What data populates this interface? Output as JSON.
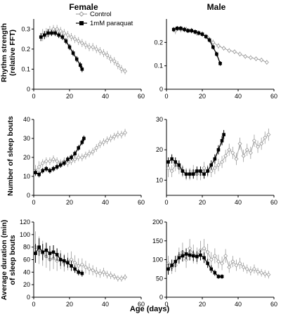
{
  "figure": {
    "column_titles": [
      "Female",
      "Male"
    ],
    "row_labels": [
      [
        "Rhythm strength",
        "(relative FFT)"
      ],
      [
        "Number of sleep bouts"
      ],
      [
        "Average duration (min)",
        "of sleep bouts"
      ]
    ],
    "x_axis_label": "Age (days)",
    "legend": [
      "Control",
      "1mM paraquat"
    ],
    "colors": {
      "control": "#9a9a9a",
      "paraquat": "#000000"
    }
  },
  "chart_data": [
    {
      "type": "line",
      "row": 0,
      "col": 0,
      "panel": "Female - rhythm strength",
      "xlim": [
        0,
        60
      ],
      "ylim": [
        0,
        0.35
      ],
      "xticks": [
        0,
        20,
        40,
        60
      ],
      "yticks": [
        0,
        0.1,
        0.2,
        0.3
      ],
      "x_ticklabels": [
        "0",
        "20",
        "40",
        "60"
      ],
      "y_ticklabels": [
        "0",
        "0.1",
        "0.2",
        "0.3"
      ],
      "series": [
        {
          "name": "Control",
          "marker": "open-diamond",
          "x": [
            5,
            7,
            9,
            11,
            13,
            15,
            17,
            19,
            21,
            23,
            25,
            27,
            29,
            31,
            33,
            35,
            37,
            39,
            41,
            43,
            45,
            47,
            49,
            51
          ],
          "y": [
            0.27,
            0.28,
            0.29,
            0.3,
            0.3,
            0.29,
            0.28,
            0.27,
            0.26,
            0.25,
            0.24,
            0.23,
            0.22,
            0.21,
            0.21,
            0.2,
            0.19,
            0.18,
            0.17,
            0.15,
            0.14,
            0.12,
            0.1,
            0.09
          ],
          "err": [
            0.03,
            0.025,
            0.025,
            0.02,
            0.02,
            0.02,
            0.02,
            0.02,
            0.02,
            0.02,
            0.02,
            0.02,
            0.02,
            0.02,
            0.02,
            0.02,
            0.02,
            0.02,
            0.02,
            0.02,
            0.02,
            0.02,
            0.02,
            0.015
          ]
        },
        {
          "name": "1mM paraquat",
          "marker": "filled-square",
          "x": [
            4,
            6,
            8,
            10,
            12,
            14,
            16,
            18,
            20,
            22,
            24,
            26,
            27
          ],
          "y": [
            0.26,
            0.27,
            0.28,
            0.28,
            0.28,
            0.27,
            0.26,
            0.24,
            0.21,
            0.18,
            0.15,
            0.12,
            0.1
          ],
          "err": [
            0.02,
            0.02,
            0.02,
            0.015,
            0.015,
            0.015,
            0.015,
            0.015,
            0.015,
            0.015,
            0.015,
            0.015,
            0.015
          ]
        }
      ]
    },
    {
      "type": "line",
      "row": 0,
      "col": 1,
      "panel": "Male - rhythm strength",
      "xlim": [
        0,
        60
      ],
      "ylim": [
        0,
        0.3
      ],
      "xticks": [
        0,
        20,
        40,
        60
      ],
      "yticks": [
        0,
        0.1,
        0.2
      ],
      "x_ticklabels": [
        "0",
        "20",
        "40",
        "60"
      ],
      "y_ticklabels": [
        "0",
        "0.1",
        "0.2"
      ],
      "series": [
        {
          "name": "Control",
          "marker": "open-diamond",
          "x": [
            5,
            8,
            11,
            14,
            17,
            20,
            23,
            26,
            29,
            32,
            35,
            38,
            41,
            44,
            47,
            50,
            53,
            56
          ],
          "y": [
            0.25,
            0.255,
            0.255,
            0.25,
            0.24,
            0.235,
            0.22,
            0.2,
            0.185,
            0.175,
            0.165,
            0.16,
            0.15,
            0.14,
            0.135,
            0.13,
            0.125,
            0.115
          ],
          "err": [
            0.015,
            0.012,
            0.012,
            0.012,
            0.012,
            0.012,
            0.012,
            0.012,
            0.012,
            0.01,
            0.01,
            0.01,
            0.01,
            0.01,
            0.01,
            0.01,
            0.01,
            0.01
          ]
        },
        {
          "name": "1mM paraquat",
          "marker": "filled-square",
          "x": [
            4,
            6,
            8,
            10,
            12,
            14,
            16,
            18,
            20,
            22,
            24,
            26,
            28,
            30
          ],
          "y": [
            0.255,
            0.26,
            0.26,
            0.255,
            0.25,
            0.25,
            0.245,
            0.24,
            0.235,
            0.225,
            0.21,
            0.18,
            0.15,
            0.11
          ],
          "err": [
            0.01,
            0.01,
            0.01,
            0.01,
            0.01,
            0.01,
            0.01,
            0.01,
            0.01,
            0.01,
            0.01,
            0.01,
            0.01,
            0.01
          ]
        }
      ]
    },
    {
      "type": "line",
      "row": 1,
      "col": 0,
      "panel": "Female - number of sleep bouts",
      "xlim": [
        0,
        60
      ],
      "ylim": [
        0,
        40
      ],
      "xticks": [
        0,
        20,
        40,
        60
      ],
      "yticks": [
        0,
        10,
        20,
        30,
        40
      ],
      "x_ticklabels": [
        "0",
        "20",
        "40",
        "60"
      ],
      "y_ticklabels": [
        "0",
        "10",
        "20",
        "30",
        "40"
      ],
      "series": [
        {
          "name": "Control",
          "marker": "open-diamond",
          "x": [
            1,
            3,
            5,
            7,
            9,
            11,
            13,
            15,
            17,
            19,
            21,
            23,
            25,
            27,
            29,
            31,
            33,
            35,
            37,
            39,
            41,
            43,
            45,
            47,
            49,
            51
          ],
          "y": [
            13,
            15,
            17,
            18,
            18,
            19,
            18,
            17,
            18,
            17,
            18,
            19,
            20,
            20,
            21,
            22,
            23,
            25,
            27,
            28,
            29,
            30,
            31,
            32,
            32,
            33
          ],
          "err": [
            3,
            3,
            2,
            2,
            2,
            2,
            2,
            2,
            2,
            2,
            2,
            2,
            2,
            2,
            2,
            2,
            2,
            2,
            2,
            2,
            2,
            2,
            2,
            2,
            2,
            2
          ]
        },
        {
          "name": "1mM paraquat",
          "marker": "filled-square",
          "x": [
            1,
            3,
            5,
            7,
            9,
            11,
            13,
            15,
            17,
            19,
            21,
            23,
            25,
            27,
            28
          ],
          "y": [
            12,
            11,
            13,
            14,
            13,
            14,
            15,
            16,
            17,
            19,
            20,
            22,
            25,
            28,
            30
          ],
          "err": [
            1.5,
            1.5,
            1.5,
            1.5,
            1.5,
            1.5,
            1.5,
            1.5,
            1.5,
            1.5,
            1.5,
            1.5,
            1.5,
            1.5,
            1.5
          ]
        }
      ]
    },
    {
      "type": "line",
      "row": 1,
      "col": 1,
      "panel": "Male - number of sleep bouts",
      "xlim": [
        0,
        60
      ],
      "ylim": [
        5,
        30
      ],
      "xticks": [
        0,
        20,
        40,
        60
      ],
      "yticks": [
        10,
        20,
        30
      ],
      "x_ticklabels": [
        "0",
        "20",
        "40",
        "60"
      ],
      "y_ticklabels": [
        "10",
        "20",
        "30"
      ],
      "series": [
        {
          "name": "Control",
          "marker": "open-diamond",
          "x": [
            1,
            3,
            5,
            7,
            9,
            11,
            13,
            15,
            17,
            19,
            21,
            23,
            25,
            27,
            29,
            31,
            33,
            35,
            37,
            39,
            41,
            43,
            45,
            47,
            49,
            51,
            53,
            55,
            57
          ],
          "y": [
            14,
            13,
            15,
            14,
            13,
            12,
            12,
            13,
            12,
            12,
            14,
            13,
            13,
            14,
            15,
            16,
            18,
            20,
            19,
            17,
            22,
            18,
            20,
            19,
            23,
            21,
            22,
            24,
            25
          ],
          "err": [
            3,
            2,
            2,
            2,
            2,
            2,
            2,
            2,
            2,
            2,
            2,
            2,
            2,
            2,
            2,
            2,
            2,
            2,
            2,
            2,
            2,
            2,
            2,
            2,
            2,
            2,
            2,
            2,
            2
          ]
        },
        {
          "name": "1mM paraquat",
          "marker": "filled-square",
          "x": [
            1,
            3,
            5,
            7,
            9,
            11,
            13,
            15,
            17,
            19,
            21,
            23,
            25,
            27,
            29,
            31,
            32
          ],
          "y": [
            16,
            17,
            16,
            15,
            13,
            12,
            12,
            12,
            13,
            13,
            12,
            13,
            15,
            17,
            20,
            23,
            25
          ],
          "err": [
            1.5,
            1.5,
            1.5,
            1.5,
            1.5,
            1.5,
            1.5,
            1.5,
            1.5,
            1.5,
            1.5,
            1.5,
            1.5,
            1.5,
            1.5,
            1.5,
            1.5
          ]
        }
      ]
    },
    {
      "type": "line",
      "row": 2,
      "col": 0,
      "panel": "Female - average duration of sleep bouts",
      "xlim": [
        0,
        60
      ],
      "ylim": [
        0,
        120
      ],
      "xticks": [
        0,
        20,
        40,
        60
      ],
      "yticks": [
        0,
        20,
        40,
        60,
        80,
        100,
        120
      ],
      "x_ticklabels": [
        "0",
        "20",
        "40",
        "60"
      ],
      "y_ticklabels": [
        "0",
        "20",
        "40",
        "60",
        "80",
        "100",
        "120"
      ],
      "series": [
        {
          "name": "Control",
          "marker": "open-diamond",
          "x": [
            1,
            3,
            5,
            7,
            9,
            11,
            13,
            15,
            17,
            19,
            21,
            23,
            25,
            27,
            29,
            31,
            33,
            35,
            37,
            39,
            41,
            43,
            45,
            47,
            49,
            51
          ],
          "y": [
            80,
            75,
            70,
            65,
            60,
            62,
            58,
            60,
            55,
            57,
            60,
            55,
            50,
            52,
            48,
            45,
            43,
            40,
            38,
            40,
            36,
            35,
            33,
            30,
            30,
            32
          ],
          "err": [
            25,
            22,
            20,
            18,
            18,
            17,
            16,
            15,
            14,
            14,
            13,
            12,
            12,
            10,
            10,
            9,
            8,
            8,
            7,
            7,
            6,
            6,
            5,
            5,
            5,
            5
          ]
        },
        {
          "name": "1mM paraquat",
          "marker": "filled-square",
          "x": [
            1,
            3,
            5,
            7,
            9,
            11,
            13,
            15,
            17,
            19,
            21,
            23,
            25,
            27
          ],
          "y": [
            70,
            80,
            72,
            75,
            70,
            72,
            68,
            60,
            58,
            55,
            50,
            45,
            40,
            38
          ],
          "err": [
            15,
            14,
            13,
            12,
            12,
            11,
            10,
            10,
            9,
            8,
            8,
            6,
            5,
            5
          ]
        }
      ]
    },
    {
      "type": "line",
      "row": 2,
      "col": 1,
      "panel": "Male - average duration of sleep bouts",
      "xlim": [
        0,
        60
      ],
      "ylim": [
        0,
        200
      ],
      "xticks": [
        0,
        20,
        40,
        60
      ],
      "yticks": [
        0,
        50,
        100,
        150,
        200
      ],
      "x_ticklabels": [
        "0",
        "20",
        "40",
        "60"
      ],
      "y_ticklabels": [
        "0",
        "50",
        "100",
        "150",
        "200"
      ],
      "series": [
        {
          "name": "Control",
          "marker": "open-diamond",
          "x": [
            1,
            3,
            5,
            7,
            9,
            11,
            13,
            15,
            17,
            19,
            21,
            23,
            25,
            27,
            29,
            31,
            33,
            35,
            37,
            39,
            41,
            43,
            45,
            47,
            49,
            51,
            53,
            55,
            57
          ],
          "y": [
            90,
            80,
            85,
            110,
            120,
            100,
            130,
            115,
            110,
            125,
            130,
            120,
            100,
            110,
            95,
            90,
            110,
            80,
            95,
            85,
            90,
            80,
            75,
            70,
            75,
            68,
            65,
            62,
            60
          ],
          "err": [
            20,
            18,
            18,
            22,
            25,
            22,
            25,
            25,
            22,
            25,
            25,
            22,
            20,
            20,
            18,
            18,
            18,
            15,
            15,
            15,
            15,
            12,
            12,
            12,
            12,
            10,
            10,
            10,
            10
          ]
        },
        {
          "name": "1mM paraquat",
          "marker": "filled-square",
          "x": [
            1,
            3,
            5,
            7,
            9,
            11,
            13,
            15,
            17,
            19,
            21,
            23,
            25,
            27,
            29,
            31
          ],
          "y": [
            75,
            85,
            95,
            105,
            110,
            115,
            112,
            110,
            108,
            112,
            105,
            90,
            75,
            65,
            55,
            55
          ],
          "err": [
            15,
            15,
            15,
            15,
            15,
            15,
            14,
            14,
            14,
            14,
            14,
            12,
            10,
            8,
            6,
            6
          ]
        }
      ]
    }
  ]
}
